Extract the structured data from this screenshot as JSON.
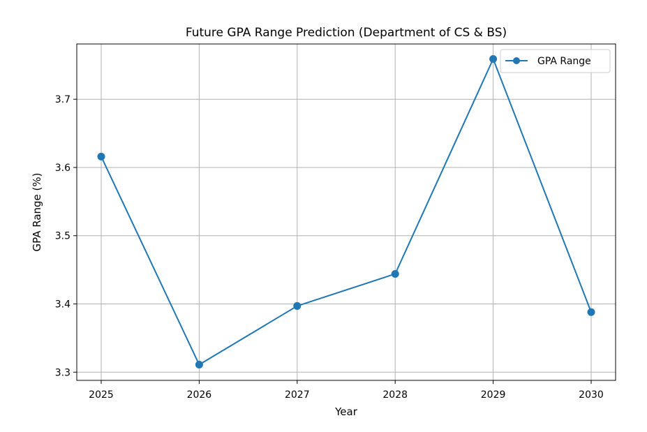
{
  "chart_data": {
    "type": "line",
    "title": "Future GPA Range Prediction (Department of CS & BS)",
    "xlabel": "Year",
    "ylabel": "GPA Range (%)",
    "x": [
      "2025",
      "2026",
      "2027",
      "2028",
      "2029",
      "2030"
    ],
    "y_ticks": [
      "3.3",
      "3.4",
      "3.5",
      "3.6",
      "3.7"
    ],
    "ylim": [
      3.288,
      3.781
    ],
    "grid": true,
    "legend_position": "top-right",
    "series": [
      {
        "name": "GPA Range",
        "color": "#1f77b4",
        "marker": "circle",
        "values": [
          3.616,
          3.311,
          3.397,
          3.444,
          3.759,
          3.388
        ]
      }
    ]
  }
}
